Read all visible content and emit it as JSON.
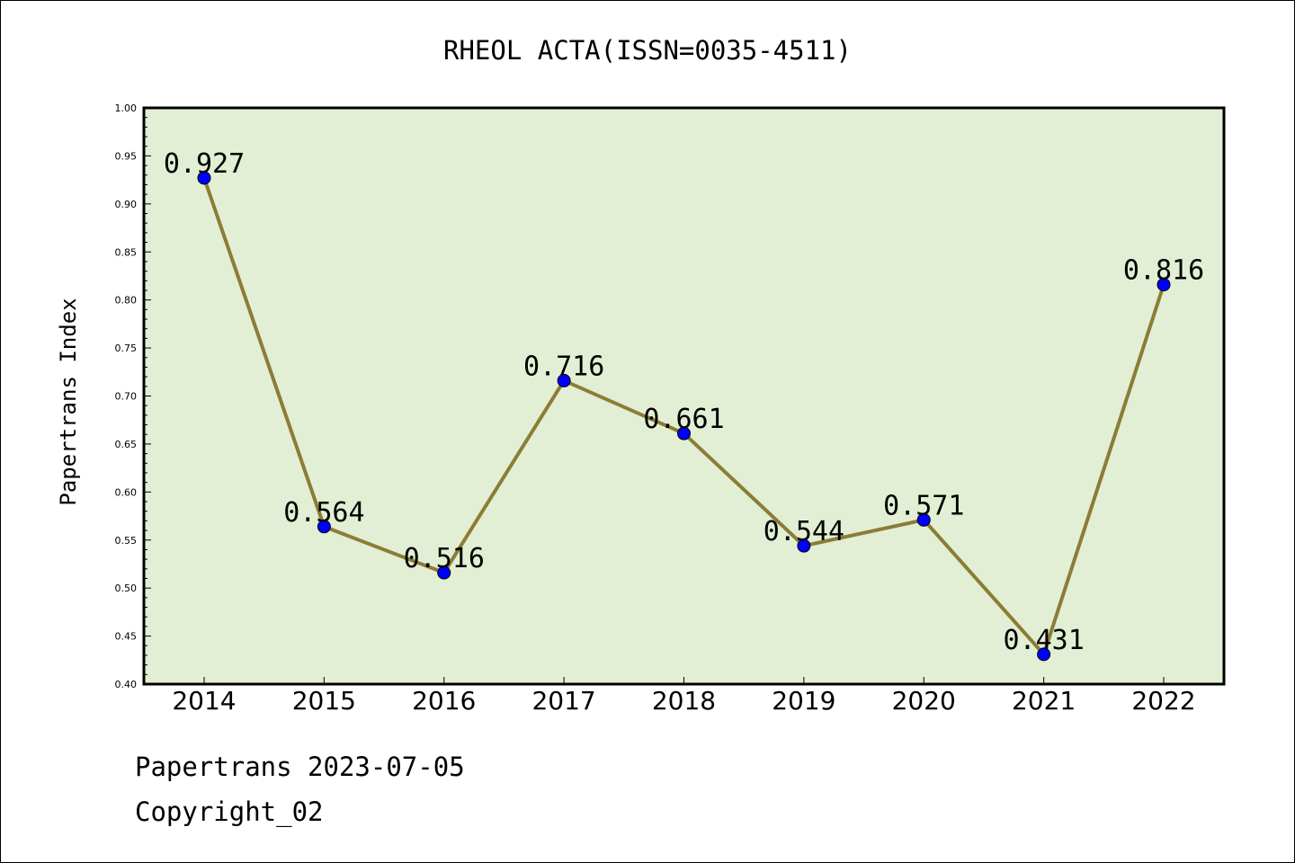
{
  "chart_data": {
    "type": "line",
    "title": "RHEOL ACTA(ISSN=0035-4511)",
    "xlabel": "",
    "ylabel": "Papertrans Index",
    "categories": [
      "2014",
      "2015",
      "2016",
      "2017",
      "2018",
      "2019",
      "2020",
      "2021",
      "2022"
    ],
    "series": [
      {
        "values": [
          0.927,
          0.564,
          0.516,
          0.716,
          0.661,
          0.544,
          0.571,
          0.431,
          0.816
        ],
        "data_labels": [
          "0.927",
          "0.564",
          "0.516",
          "0.716",
          "0.661",
          "0.544",
          "0.571",
          "0.431",
          "0.816"
        ]
      }
    ],
    "ylim": [
      0.4,
      1.0
    ],
    "yticks": [
      "0.40",
      "0.45",
      "0.50",
      "0.55",
      "0.60",
      "0.65",
      "0.70",
      "0.75",
      "0.80",
      "0.85",
      "0.90",
      "0.95",
      "1.00"
    ],
    "grid": false,
    "colors": {
      "plot_background": "#e2efd4",
      "line": "#8b7d35",
      "marker": "#0000ff"
    }
  },
  "footer": {
    "date_line": "Papertrans 2023-07-05",
    "copyright": "Copyright_02"
  }
}
